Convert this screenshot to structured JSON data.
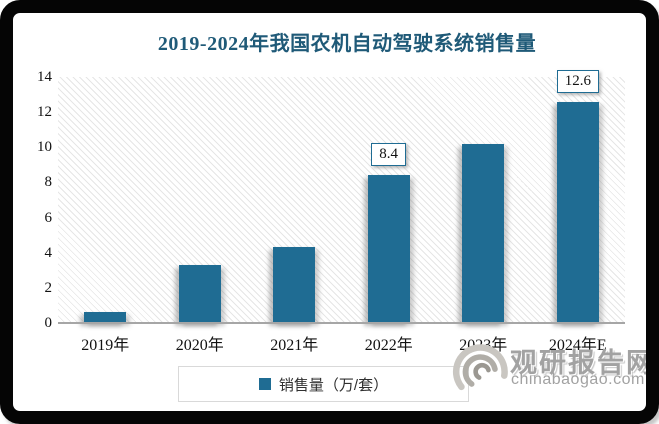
{
  "chart_data": {
    "type": "bar",
    "title": "2019-2024年我国农机自动驾驶系统销售量",
    "categories": [
      "2019年",
      "2020年",
      "2021年",
      "2022年",
      "2023年",
      "2024年E"
    ],
    "values": [
      0.6,
      3.3,
      4.3,
      8.4,
      10.2,
      12.6
    ],
    "data_labels": [
      null,
      null,
      null,
      "8.4",
      null,
      "12.6"
    ],
    "series_name": "销售量（万/套）",
    "xlabel": "",
    "ylabel": "",
    "y_ticks": [
      0,
      2,
      4,
      6,
      8,
      10,
      12,
      14
    ],
    "ylim": [
      0,
      14
    ],
    "grid": false,
    "legend_position": "bottom",
    "bar_color": "#1f6c93",
    "title_color": "#1f5a78",
    "plot_hatch": "diagonal-light-gray"
  },
  "legend": {
    "label": "销售量（万/套）"
  },
  "watermark": {
    "name": "观研报告网",
    "domain": "chinabaogao.com"
  }
}
